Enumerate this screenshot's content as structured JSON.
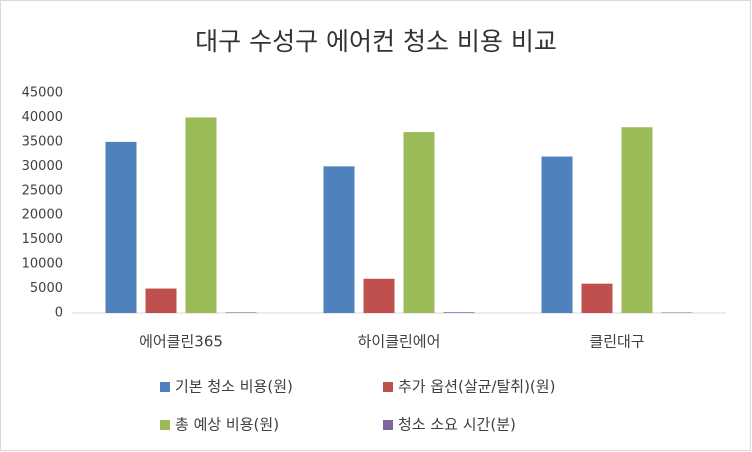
{
  "chart_data": {
    "type": "bar",
    "title": "대구 수성구 에어컨 청소 비용 비교",
    "categories": [
      "에어클린365",
      "하이클린에어",
      "클린대구"
    ],
    "series": [
      {
        "name": "기본 청소 비용(원)",
        "color": "#4f81bd",
        "values": [
          35000,
          30000,
          32000
        ]
      },
      {
        "name": "추가 옵션(살균/탈취)(원)",
        "color": "#c0504d",
        "values": [
          5000,
          7000,
          6000
        ]
      },
      {
        "name": "총 예상 비용(원)",
        "color": "#9bbb59",
        "values": [
          40000,
          37000,
          38000
        ]
      },
      {
        "name": "청소 소요 시간(분)",
        "color": "#8064a2",
        "values": [
          120,
          150,
          100
        ]
      }
    ],
    "ylim": [
      0,
      45000
    ],
    "yticks": [
      0,
      5000,
      10000,
      15000,
      20000,
      25000,
      30000,
      35000,
      40000,
      45000
    ],
    "grid": false
  }
}
